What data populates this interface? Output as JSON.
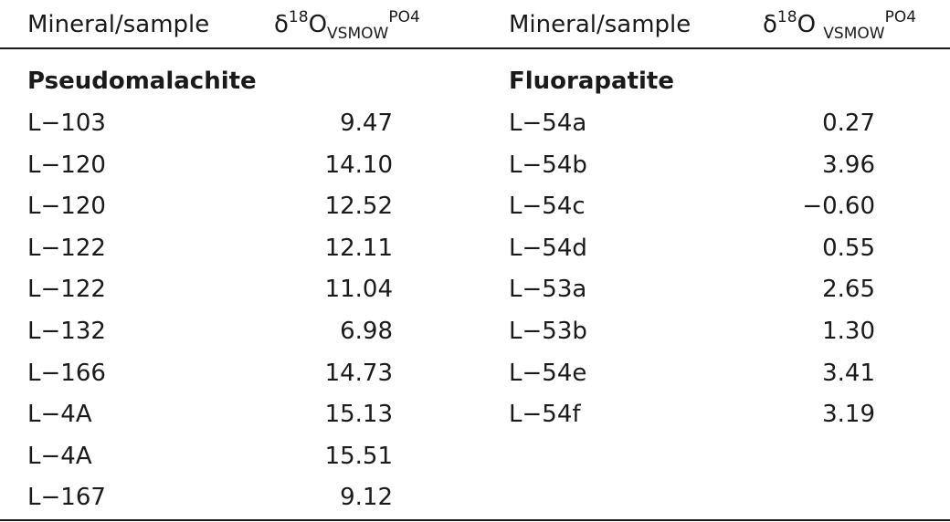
{
  "headers": {
    "left_sample": "Mineral/sample",
    "left_delta_prefix": "δ",
    "left_delta_sup": "18",
    "left_delta_O": "O",
    "left_delta_sub": "VSMOW",
    "left_delta_sup2": "PO4",
    "right_sample": "Mineral/sample",
    "right_delta_prefix": "δ",
    "right_delta_sup": "18",
    "right_delta_O": "O ",
    "right_delta_sub": "VSMOW",
    "right_delta_sup2": "PO4"
  },
  "left_group": {
    "title": "Pseudomalachite",
    "rows": [
      {
        "sample": "L−103",
        "value": "9.47"
      },
      {
        "sample": "L−120",
        "value": "14.10"
      },
      {
        "sample": "L−120",
        "value": "12.52"
      },
      {
        "sample": "L−122",
        "value": "12.11"
      },
      {
        "sample": "L−122",
        "value": "11.04"
      },
      {
        "sample": "L−132",
        "value": "6.98"
      },
      {
        "sample": "L−166",
        "value": "14.73"
      },
      {
        "sample": "L−4A",
        "value": "15.13"
      },
      {
        "sample": "L−4A",
        "value": "15.51"
      },
      {
        "sample": "L−167",
        "value": "9.12"
      }
    ]
  },
  "right_group": {
    "title": "Fluorapatite",
    "rows": [
      {
        "sample": "L−54a",
        "value": "0.27"
      },
      {
        "sample": "L−54b",
        "value": "3.96"
      },
      {
        "sample": "L−54c",
        "value": "−0.60"
      },
      {
        "sample": "L−54d",
        "value": "0.55"
      },
      {
        "sample": "L−53a",
        "value": "2.65"
      },
      {
        "sample": "L−53b",
        "value": "1.30"
      },
      {
        "sample": "L−54e",
        "value": "3.41"
      },
      {
        "sample": "L−54f",
        "value": "3.19"
      }
    ]
  }
}
